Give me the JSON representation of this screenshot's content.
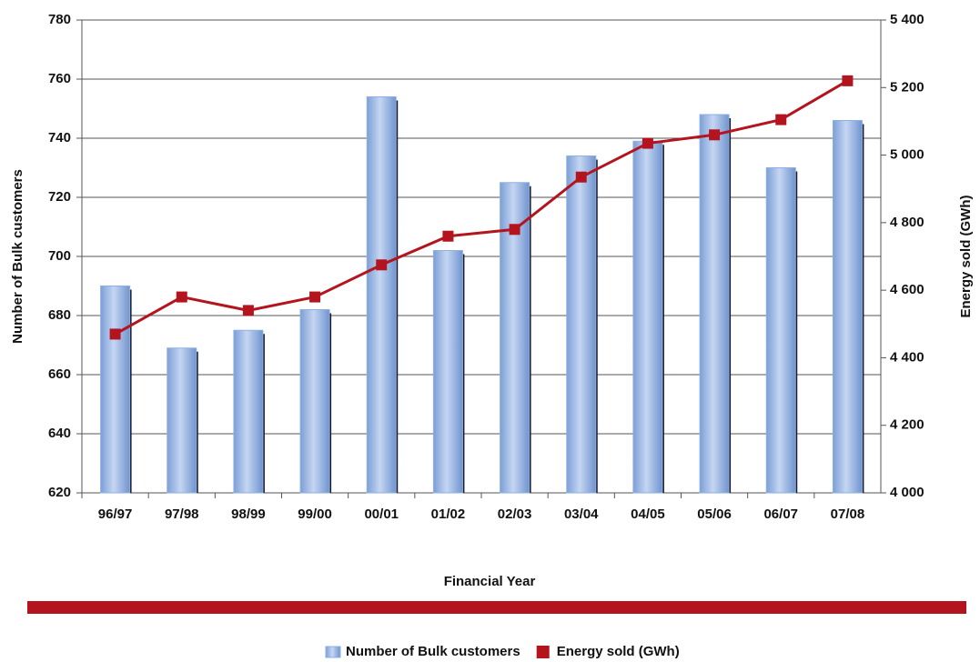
{
  "chart_data": {
    "type": "bar_line",
    "x_label": "Financial Year",
    "y_label": "Number of Bulk customers",
    "y2_label": "Energy sold (GWh)",
    "categories": [
      "96/97",
      "97/98",
      "98/99",
      "99/00",
      "00/01",
      "01/02",
      "02/03",
      "03/04",
      "04/05",
      "05/06",
      "06/07",
      "07/08"
    ],
    "series": [
      {
        "name": "Number of Bulk customers",
        "color": "#8db0e3",
        "type": "bar",
        "values": [
          690,
          669,
          675,
          682,
          754,
          702,
          725,
          734,
          739,
          748,
          730,
          746
        ]
      },
      {
        "name": "Energy sold (GWh)",
        "color": "#b3141d",
        "type": "line",
        "axis": "y2",
        "values": [
          4470,
          4580,
          4540,
          4580,
          4675,
          4760,
          4780,
          4935,
          5035,
          5060,
          5105,
          5220
        ]
      }
    ],
    "ylim": [
      620,
      780
    ],
    "yticks": [
      620,
      640,
      660,
      680,
      700,
      720,
      740,
      760,
      780
    ],
    "y2lim": [
      4000,
      5400
    ],
    "y2ticks": [
      {
        "value": 4000,
        "label": "4 000"
      },
      {
        "value": 4200,
        "label": "4 200"
      },
      {
        "value": 4400,
        "label": "4 400"
      },
      {
        "value": 4600,
        "label": "4 600"
      },
      {
        "value": 4800,
        "label": "4 800"
      },
      {
        "value": 5000,
        "label": "5 000"
      },
      {
        "value": 5200,
        "label": "5 200"
      },
      {
        "value": 5400,
        "label": "5 400"
      }
    ],
    "grid": true
  }
}
